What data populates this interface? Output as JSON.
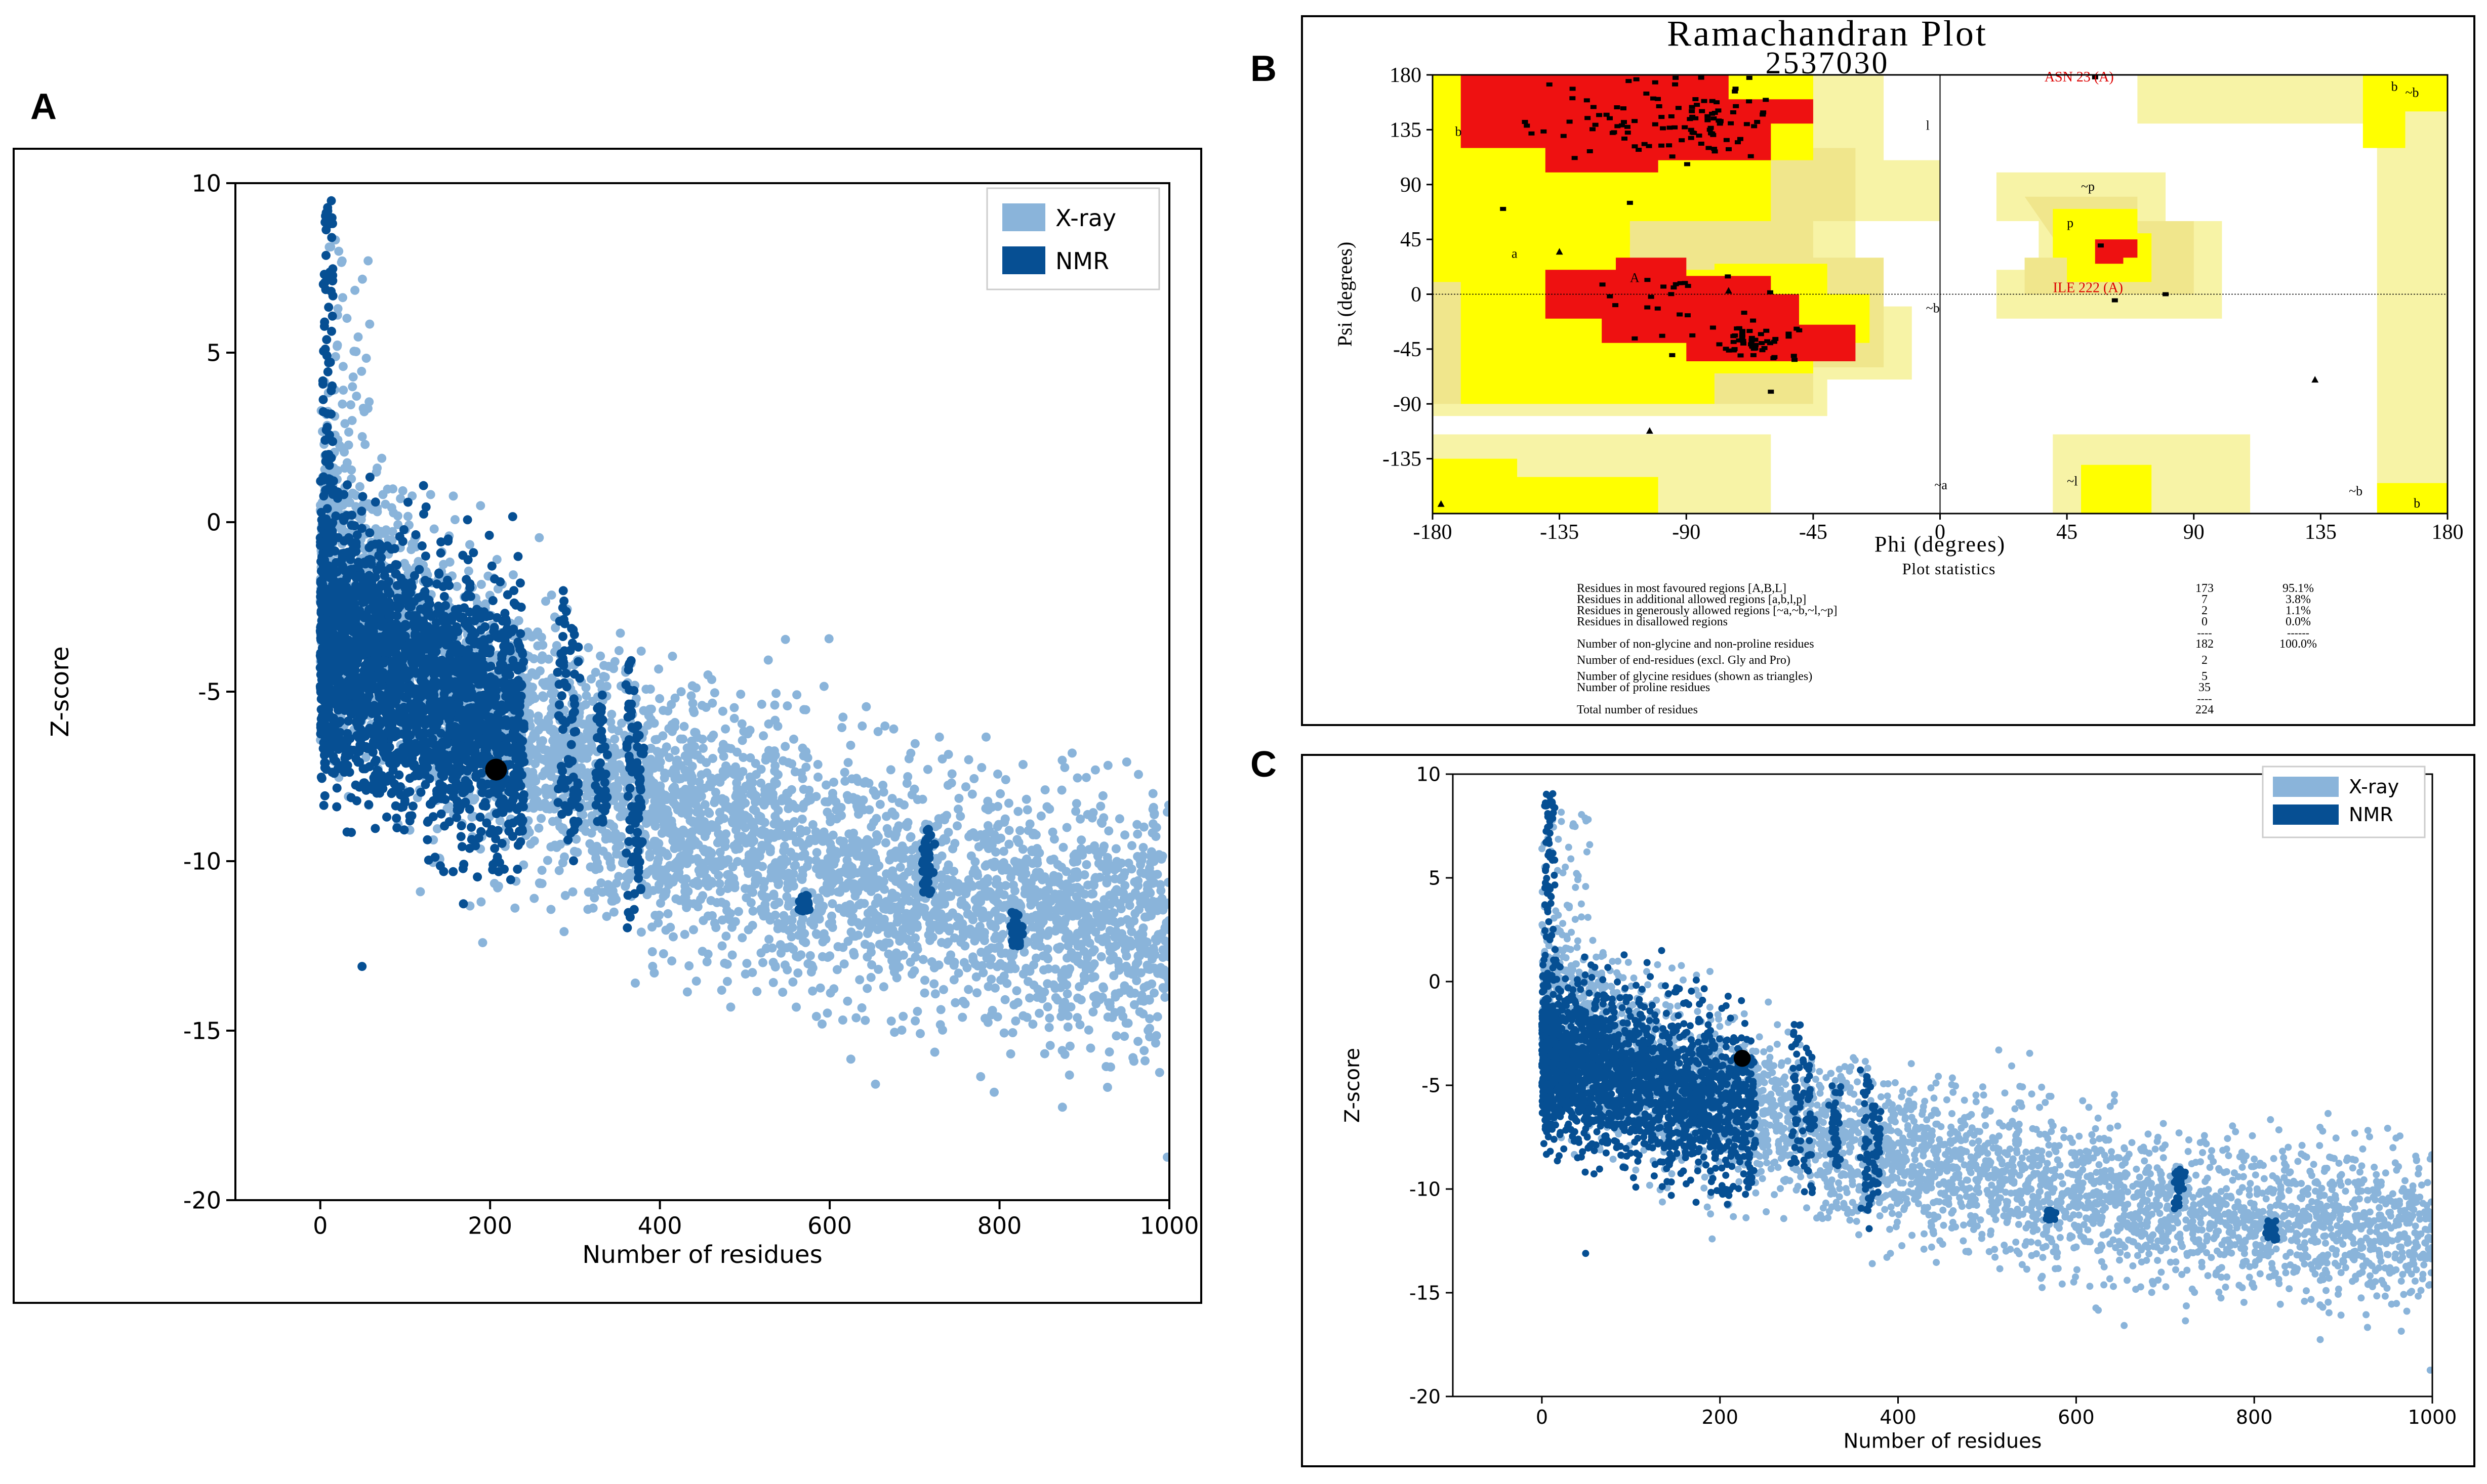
{
  "panels": {
    "a": {
      "letter": "A"
    },
    "b": {
      "letter": "B"
    },
    "c": {
      "letter": "C"
    }
  },
  "chart_data": [
    {
      "id": "A",
      "type": "scatter",
      "title": "",
      "xlabel": "Number of residues",
      "ylabel": "Z-score",
      "xlim": [
        -100,
        1000
      ],
      "ylim": [
        -20,
        10
      ],
      "xticks": [
        0,
        200,
        400,
        600,
        800,
        1000
      ],
      "yticks": [
        10,
        5,
        0,
        -5,
        -10,
        -15,
        -20
      ],
      "legend": {
        "position": "top-right",
        "entries": [
          {
            "label": "X-ray",
            "color": "#8ab4da"
          },
          {
            "label": "NMR",
            "color": "#064f93"
          }
        ]
      },
      "series_colors": {
        "xray": "#8ab4da",
        "nmr": "#064f93",
        "query": "#000000"
      },
      "highlight_point": {
        "x": 207,
        "y": -7.3
      },
      "grid": false
    },
    {
      "id": "B",
      "type": "scatter",
      "title": "Ramachandran Plot",
      "subtitle": "2537030",
      "xlabel": "Phi (degrees)",
      "ylabel": "Psi (degrees)",
      "xlim": [
        -180,
        180
      ],
      "ylim": [
        -180,
        180
      ],
      "xticks": [
        -180,
        -135,
        -90,
        -45,
        0,
        45,
        90,
        135,
        180
      ],
      "yticks": [
        180,
        135,
        90,
        45,
        0,
        -45,
        -90,
        -135
      ],
      "region_colors": {
        "core": "#ee1111",
        "allowed": "#ffff00",
        "generous": "#f0e68c",
        "generous_light": "#f7f3a6"
      },
      "region_labels": [
        "b",
        "a",
        "~b",
        "~a",
        "~l",
        "l",
        "~p",
        "p",
        "b",
        "~b",
        "~b",
        "A",
        "b"
      ],
      "annotations": [
        {
          "label": "ASN 23 (A)",
          "phi": 55,
          "psi": 178
        },
        {
          "label": "ILE 222 (A)",
          "phi": 58,
          "psi": 5
        }
      ],
      "statistics": {
        "heading": "Plot statistics",
        "rows": [
          {
            "label": "Residues in most favoured regions  [A,B,L]",
            "count": "173",
            "pct": "95.1%"
          },
          {
            "label": "Residues in additional allowed regions  [a,b,l,p]",
            "count": "7",
            "pct": "3.8%"
          },
          {
            "label": "Residues in generously allowed regions  [~a,~b,~l,~p]",
            "count": "2",
            "pct": "1.1%"
          },
          {
            "label": "Residues in disallowed regions",
            "count": "0",
            "pct": "0.0%"
          },
          {
            "label": "Number of non-glycine and non-proline residues",
            "count": "182",
            "pct": "100.0%"
          },
          {
            "label": "Number of end-residues (excl. Gly and Pro)",
            "count": "2",
            "pct": ""
          },
          {
            "label": "Number of glycine residues (shown as triangles)",
            "count": "5",
            "pct": ""
          },
          {
            "label": "Number of proline residues",
            "count": "35",
            "pct": ""
          },
          {
            "label": "Total number of residues",
            "count": "224",
            "pct": ""
          }
        ],
        "separator": "----",
        "separator_pct": "------"
      }
    },
    {
      "id": "C",
      "type": "scatter",
      "title": "",
      "xlabel": "Number of residues",
      "ylabel": "Z-score",
      "xlim": [
        -100,
        1000
      ],
      "ylim": [
        -20,
        10
      ],
      "xticks": [
        0,
        200,
        400,
        600,
        800,
        1000
      ],
      "yticks": [
        10,
        5,
        0,
        -5,
        -10,
        -15,
        -20
      ],
      "legend": {
        "position": "top-right",
        "entries": [
          {
            "label": "X-ray",
            "color": "#8ab4da"
          },
          {
            "label": "NMR",
            "color": "#064f93"
          }
        ]
      },
      "series_colors": {
        "xray": "#8ab4da",
        "nmr": "#064f93",
        "query": "#000000"
      },
      "highlight_point": {
        "x": 225,
        "y": -3.7
      },
      "grid": false
    }
  ]
}
